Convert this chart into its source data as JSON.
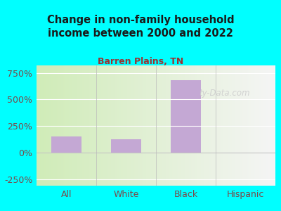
{
  "title": "Change in non-family household\nincome between 2000 and 2022",
  "subtitle": "Barren Plains, TN",
  "categories": [
    "All",
    "White",
    "Black",
    "Hispanic"
  ],
  "values": [
    150,
    125,
    680,
    -8
  ],
  "bar_color": "#c4a8d4",
  "background_color": "#00FFFF",
  "title_color": "#1a1a1a",
  "subtitle_color": "#993333",
  "axis_label_color": "#7a4a4a",
  "yticks": [
    -250,
    0,
    250,
    500,
    750
  ],
  "ylim": [
    -310,
    820
  ],
  "xlim": [
    -0.5,
    3.5
  ],
  "watermark": "ty-Data.com",
  "watermark_color": "#cccccc",
  "grid_color": "#dddddd",
  "plot_bg_left": "#d0ecb8",
  "plot_bg_right": "#f2f2f2"
}
